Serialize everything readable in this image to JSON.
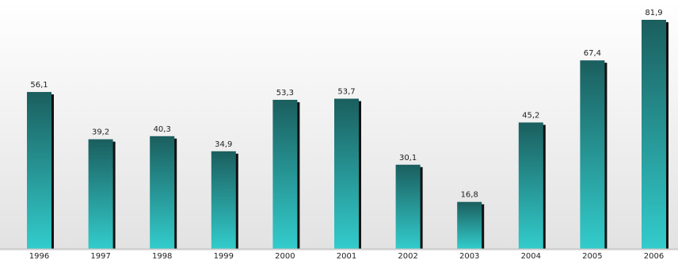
{
  "chart_data": {
    "type": "bar",
    "categories": [
      "1996",
      "1997",
      "1998",
      "1999",
      "2000",
      "2001",
      "2002",
      "2003",
      "2004",
      "2005",
      "2006"
    ],
    "values": [
      56.1,
      39.2,
      40.3,
      34.9,
      53.3,
      53.7,
      30.1,
      16.8,
      45.2,
      67.4,
      81.9
    ],
    "value_labels": [
      "56,1",
      "39,2",
      "40,3",
      "34,9",
      "53,3",
      "53,7",
      "30,1",
      "16,8",
      "45,2",
      "67,4",
      "81,9"
    ],
    "ylim": [
      0,
      81.9
    ],
    "grid": false,
    "legend": "none",
    "colors": {
      "bar_top": "#1b5e5e",
      "bar_bottom": "#33cccc",
      "bar_shadow": "#111111",
      "background_top": "#ffffff",
      "background_bottom": "#e2e2e2",
      "baseline": "#bfbfbf",
      "label_text": "#222222"
    }
  }
}
